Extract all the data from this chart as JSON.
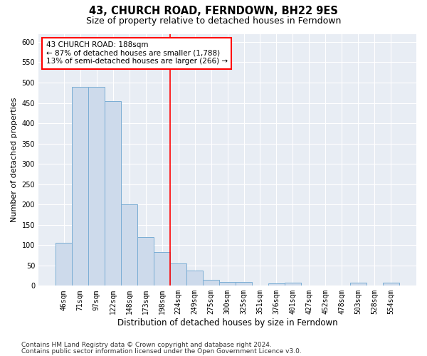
{
  "title": "43, CHURCH ROAD, FERNDOWN, BH22 9ES",
  "subtitle": "Size of property relative to detached houses in Ferndown",
  "xlabel": "Distribution of detached houses by size in Ferndown",
  "ylabel": "Number of detached properties",
  "categories": [
    "46sqm",
    "71sqm",
    "97sqm",
    "122sqm",
    "148sqm",
    "173sqm",
    "198sqm",
    "224sqm",
    "249sqm",
    "275sqm",
    "300sqm",
    "325sqm",
    "351sqm",
    "376sqm",
    "401sqm",
    "427sqm",
    "452sqm",
    "478sqm",
    "503sqm",
    "528sqm",
    "554sqm"
  ],
  "values": [
    105,
    490,
    490,
    455,
    200,
    120,
    83,
    55,
    38,
    15,
    10,
    10,
    0,
    5,
    7,
    0,
    0,
    0,
    7,
    0,
    7
  ],
  "bar_color": "#cddaeb",
  "bar_edge_color": "#7aadd4",
  "red_line_index": 6.5,
  "annotation_text": "43 CHURCH ROAD: 188sqm\n← 87% of detached houses are smaller (1,788)\n13% of semi-detached houses are larger (266) →",
  "annotation_box_color": "white",
  "annotation_box_edge_color": "red",
  "ylim": [
    0,
    620
  ],
  "yticks": [
    0,
    50,
    100,
    150,
    200,
    250,
    300,
    350,
    400,
    450,
    500,
    550,
    600
  ],
  "plot_bg_color": "#e8edf4",
  "footer_line1": "Contains HM Land Registry data © Crown copyright and database right 2024.",
  "footer_line2": "Contains public sector information licensed under the Open Government Licence v3.0.",
  "title_fontsize": 10.5,
  "subtitle_fontsize": 9,
  "xlabel_fontsize": 8.5,
  "ylabel_fontsize": 8,
  "tick_fontsize": 7,
  "annotation_fontsize": 7.5,
  "footer_fontsize": 6.5
}
